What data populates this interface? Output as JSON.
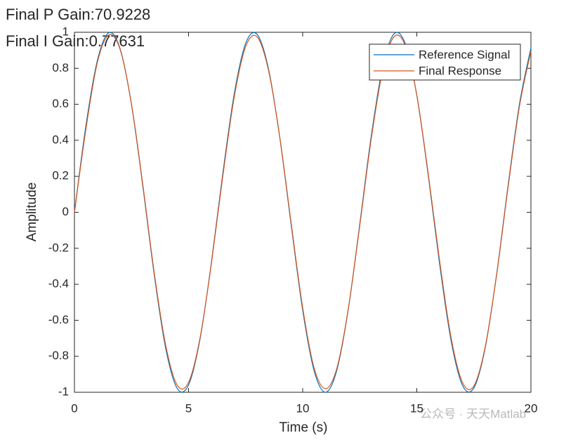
{
  "chart_data": {
    "type": "line",
    "annotations": [
      "Final P Gain:70.9228",
      "Final I Gain:0.77631"
    ],
    "xlabel": "Time (s)",
    "ylabel": "Amplitude",
    "watermark": "公众号 · 天天Matlab",
    "x": [
      0,
      0.5,
      1,
      1.5,
      2,
      2.5,
      3,
      3.5,
      4,
      4.5,
      5,
      5.5,
      6,
      6.5,
      7,
      7.5,
      8,
      8.5,
      9,
      9.5,
      10,
      10.5,
      11,
      11.5,
      12,
      12.5,
      13,
      13.5,
      14,
      14.5,
      15,
      15.5,
      16,
      16.5,
      17,
      17.5,
      18,
      18.5,
      19,
      19.5,
      20
    ],
    "series": [
      {
        "name": "Reference Signal",
        "color": "#0072bd",
        "values": [
          0,
          0.479,
          0.841,
          0.997,
          0.909,
          0.598,
          0.141,
          -0.351,
          -0.757,
          -0.978,
          -0.959,
          -0.706,
          -0.279,
          0.215,
          0.657,
          0.938,
          0.989,
          0.798,
          0.412,
          -0.075,
          -0.544,
          -0.88,
          -1,
          -0.875,
          -0.537,
          -0.066,
          0.42,
          0.804,
          0.991,
          0.935,
          0.65,
          0.206,
          -0.288,
          -0.712,
          -0.961,
          -0.976,
          -0.751,
          -0.342,
          0.15,
          0.603,
          0.913
        ]
      },
      {
        "name": "Final Response",
        "color": "#d95319",
        "values": [
          0,
          0.46,
          0.83,
          0.985,
          0.905,
          0.6,
          0.15,
          -0.34,
          -0.74,
          -0.96,
          -0.945,
          -0.7,
          -0.285,
          0.2,
          0.64,
          0.92,
          0.975,
          0.79,
          0.415,
          -0.065,
          -0.53,
          -0.865,
          -0.98,
          -0.865,
          -0.535,
          -0.075,
          0.405,
          0.785,
          0.975,
          0.925,
          0.65,
          0.215,
          -0.27,
          -0.695,
          -0.945,
          -0.965,
          -0.745,
          -0.345,
          0.14,
          0.59,
          0.895
        ]
      }
    ],
    "xlim": [
      0,
      20
    ],
    "xticks": [
      0,
      5,
      10,
      15,
      20
    ],
    "ylim": [
      -1,
      1
    ],
    "yticks": [
      -1,
      -0.8,
      -0.6,
      -0.4,
      -0.2,
      0,
      0.2,
      0.4,
      0.6,
      0.8,
      1
    ],
    "legend": "upper right"
  }
}
